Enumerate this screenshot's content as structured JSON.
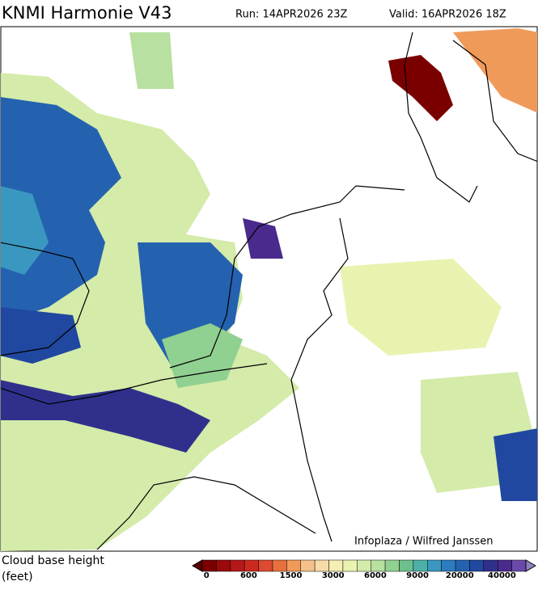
{
  "header": {
    "title": "KNMI Harmonie V43",
    "run": "Run: 14APR2026 23Z",
    "valid": "Valid: 16APR2026 18Z"
  },
  "credit": "Infoplaza / Wilfred Janssen",
  "legend": {
    "label_lines": [
      "Cloud base height",
      "(feet)"
    ]
  },
  "colorbar": {
    "colors": [
      "#5a0000",
      "#7a0000",
      "#9a0a0a",
      "#b41818",
      "#cc2a20",
      "#dc4a30",
      "#e8703c",
      "#f09a5a",
      "#f5c08a",
      "#f8dca8",
      "#f6eeb4",
      "#eaf2b0",
      "#d4ebaa",
      "#b8e0a0",
      "#90d090",
      "#6cc08c",
      "#4cb0a8",
      "#3a98c0",
      "#2c7cc0",
      "#2462b0",
      "#2048a0",
      "#30308c",
      "#4a2a8c",
      "#6a4aa8",
      "#9080c0"
    ],
    "ticks": [
      0,
      600,
      1500,
      3000,
      6000,
      9000,
      20000,
      40000
    ]
  }
}
